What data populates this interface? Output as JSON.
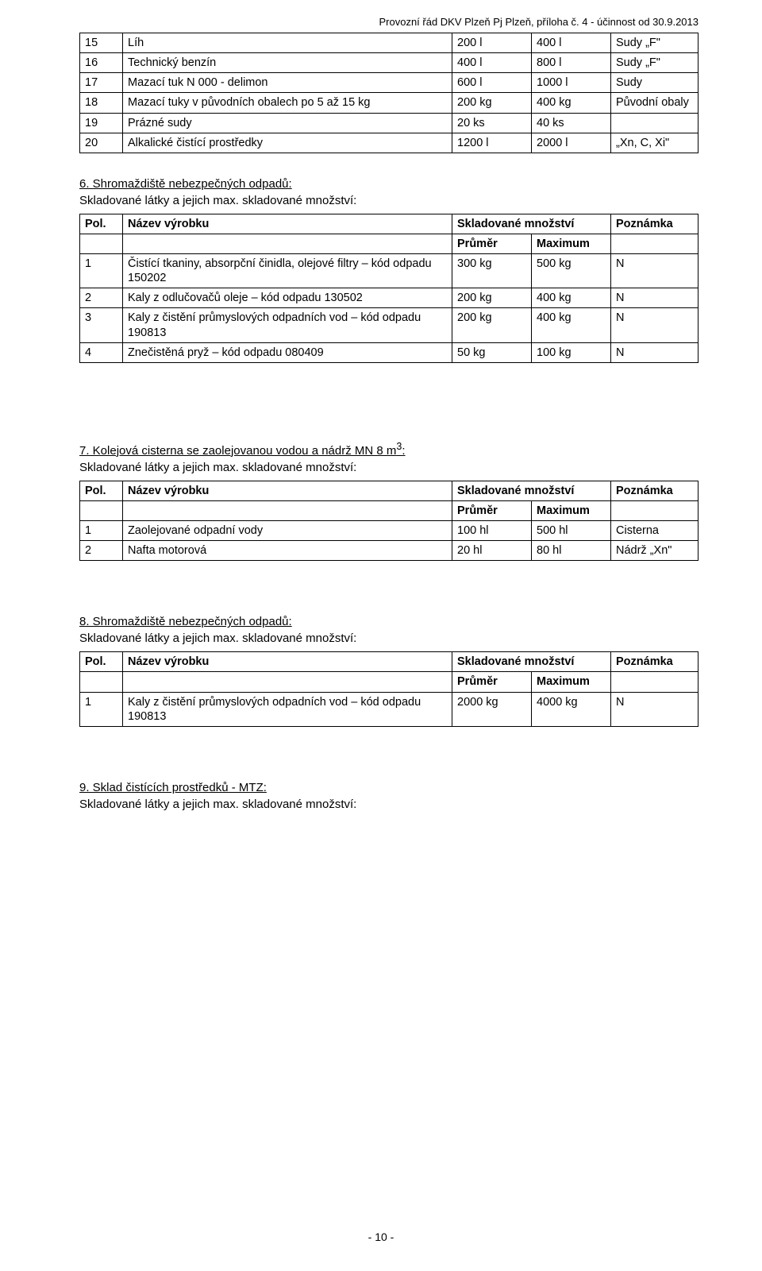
{
  "header": "Provozní řád DKV Plzeň Pj Plzeň, příloha č. 4 - účinnost od 30.9.2013",
  "footer": "- 10 -",
  "topTable": {
    "rows": [
      [
        "15",
        "Líh",
        "200 l",
        "400 l",
        "Sudy „F\""
      ],
      [
        "16",
        "Technický benzín",
        "400 l",
        "800 l",
        "Sudy „F\""
      ],
      [
        "17",
        "Mazací tuk N 000 - delimon",
        "600 l",
        "1000 l",
        "Sudy"
      ],
      [
        "18",
        "Mazací tuky v původních obalech po 5 až 15 kg",
        "200 kg",
        "400 kg",
        "Původní obaly"
      ],
      [
        "19",
        "Prázné sudy",
        "20 ks",
        "40 ks",
        ""
      ],
      [
        "20",
        "Alkalické čistící prostředky",
        "1200 l",
        "2000 l",
        "„Xn, C, Xi\""
      ]
    ]
  },
  "section6": {
    "title": "6. Shromaždiště nebezpečných odpadů:",
    "sub": "Skladované látky a jejich max. skladované množství:",
    "head": {
      "pol": "Pol.",
      "name": "Název výrobku",
      "group": "Skladované množství",
      "note": "Poznámka",
      "c1": "Průměr",
      "c2": "Maximum"
    },
    "rows": [
      [
        "1",
        "Čistící tkaniny, absorpční činidla, olejové filtry – kód odpadu 150202",
        "300 kg",
        "500 kg",
        "N"
      ],
      [
        "2",
        "Kaly z odlučovačů oleje – kód odpadu 130502",
        "200 kg",
        "400 kg",
        "N"
      ],
      [
        "3",
        "Kaly z čistění průmyslových odpadních vod – kód odpadu 190813",
        "200 kg",
        "400 kg",
        "N"
      ],
      [
        "4",
        "Znečistěná pryž – kód odpadu 080409",
        "50 kg",
        "100 kg",
        "N"
      ]
    ]
  },
  "section7": {
    "title": "7. Kolejová cisterna se zaolejovanou vodou a nádrž MN 8 m³:",
    "sub": "Skladované látky a jejich max. skladované množství:",
    "head": {
      "pol": "Pol.",
      "name": "Název výrobku",
      "group": "Skladované množství",
      "note": "Poznámka",
      "c1": "Průměr",
      "c2": "Maximum"
    },
    "rows": [
      [
        "1",
        "Zaolejované odpadní vody",
        "100 hl",
        "500 hl",
        "Cisterna"
      ],
      [
        "2",
        "Nafta motorová",
        "20 hl",
        "80 hl",
        "Nádrž „Xn\""
      ]
    ]
  },
  "section8": {
    "title": "8. Shromaždiště nebezpečných odpadů:",
    "sub": "Skladované látky a jejich max. skladované množství:",
    "head": {
      "pol": "Pol.",
      "name": "Název výrobku",
      "group": "Skladované množství",
      "note": "Poznámka",
      "c1": "Průměr",
      "c2": "Maximum"
    },
    "rows": [
      [
        "1",
        "Kaly z čistění průmyslových odpadních vod – kód odpadu 190813",
        "2000 kg",
        "4000 kg",
        "N"
      ]
    ]
  },
  "section9": {
    "title": "9. Sklad čistících prostředků - MTZ:",
    "sub": "Skladované látky a jejich max. skladované množství:"
  }
}
